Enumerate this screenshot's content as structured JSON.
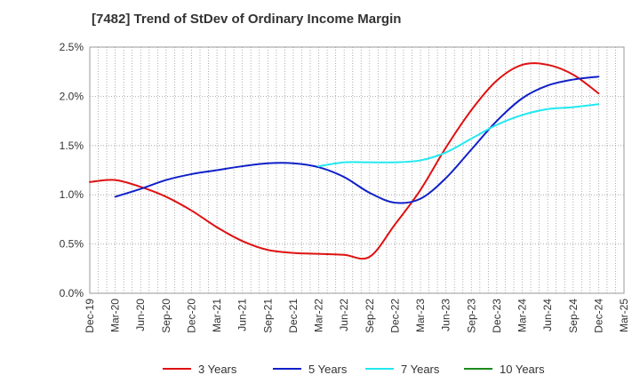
{
  "chart_data": {
    "type": "line",
    "title": "[7482]  Trend of StDev of Ordinary Income Margin",
    "x": [
      "Dec-19",
      "Mar-20",
      "Jun-20",
      "Sep-20",
      "Dec-20",
      "Mar-21",
      "Jun-21",
      "Sep-21",
      "Dec-21",
      "Mar-22",
      "Jun-22",
      "Sep-22",
      "Dec-22",
      "Mar-23",
      "Jun-23",
      "Sep-23",
      "Dec-23",
      "Mar-24",
      "Jun-24",
      "Sep-24",
      "Dec-24",
      "Mar-25"
    ],
    "y_ticks": [
      "0.0%",
      "0.5%",
      "1.0%",
      "1.5%",
      "2.0%",
      "2.5%"
    ],
    "ylim": [
      0,
      2.5
    ],
    "grid": true,
    "legend_position": "bottom",
    "series": [
      {
        "name": "3 Years",
        "color": "#e01010",
        "values": [
          1.13,
          1.15,
          1.08,
          0.98,
          0.84,
          0.67,
          0.53,
          0.44,
          0.41,
          0.4,
          0.39,
          0.37,
          0.7,
          1.05,
          1.48,
          1.86,
          2.16,
          2.32,
          2.32,
          2.22,
          2.03,
          null
        ]
      },
      {
        "name": "5 Years",
        "color": "#1020c8",
        "values": [
          null,
          0.98,
          1.06,
          1.15,
          1.21,
          1.25,
          1.29,
          1.32,
          1.32,
          1.28,
          1.18,
          1.02,
          0.92,
          0.96,
          1.17,
          1.46,
          1.75,
          1.98,
          2.11,
          2.17,
          2.2,
          null
        ]
      },
      {
        "name": "7 Years",
        "color": "#22e8f0",
        "values": [
          null,
          null,
          null,
          null,
          null,
          null,
          null,
          null,
          null,
          1.29,
          1.33,
          1.33,
          1.33,
          1.35,
          1.43,
          1.57,
          1.71,
          1.81,
          1.87,
          1.89,
          1.92,
          null
        ]
      },
      {
        "name": "10 Years",
        "color": "#1a8a1a",
        "values": [
          null,
          null,
          null,
          null,
          null,
          null,
          null,
          null,
          null,
          null,
          null,
          null,
          null,
          null,
          null,
          null,
          null,
          null,
          null,
          null,
          null,
          null
        ]
      }
    ]
  }
}
